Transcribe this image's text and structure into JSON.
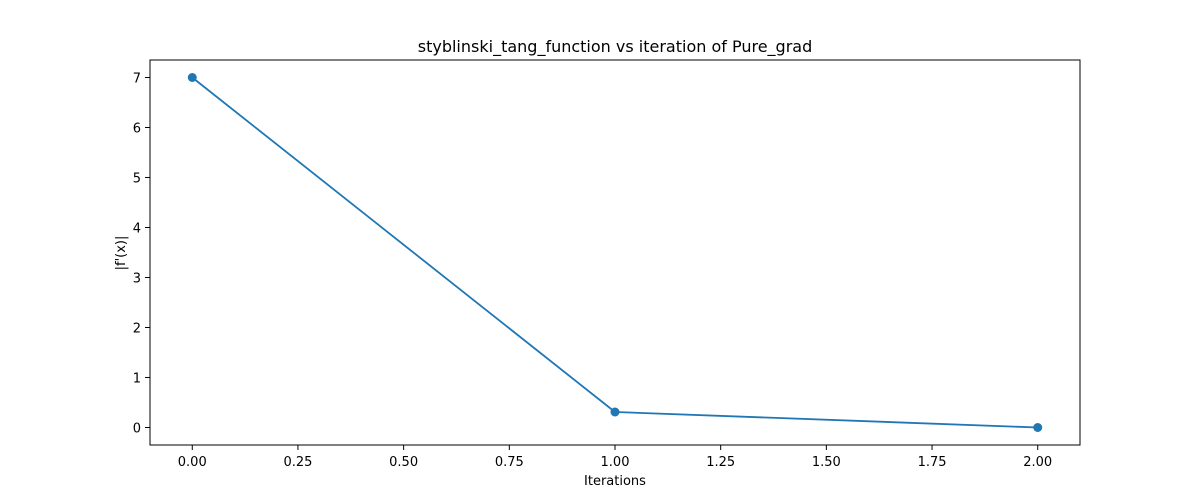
{
  "chart_data": {
    "type": "line",
    "title": "styblinski_tang_function vs iteration of Pure_grad",
    "xlabel": "Iterations",
    "ylabel": "|f'(x)|",
    "x": [
      0,
      1,
      2
    ],
    "series": [
      {
        "values": [
          7.0,
          0.31,
          0.0
        ],
        "color": "#1f77b4",
        "marker": "circle"
      }
    ],
    "xlim": [
      -0.1,
      2.1
    ],
    "ylim": [
      -0.35,
      7.35
    ],
    "xticks": [
      0.0,
      0.25,
      0.5,
      0.75,
      1.0,
      1.25,
      1.5,
      1.75,
      2.0
    ],
    "xtick_labels": [
      "0.00",
      "0.25",
      "0.50",
      "0.75",
      "1.00",
      "1.25",
      "1.50",
      "1.75",
      "2.00"
    ],
    "yticks": [
      0,
      1,
      2,
      3,
      4,
      5,
      6,
      7
    ],
    "ytick_labels": [
      "0",
      "1",
      "2",
      "3",
      "4",
      "5",
      "6",
      "7"
    ],
    "grid": false,
    "legend": "none"
  }
}
